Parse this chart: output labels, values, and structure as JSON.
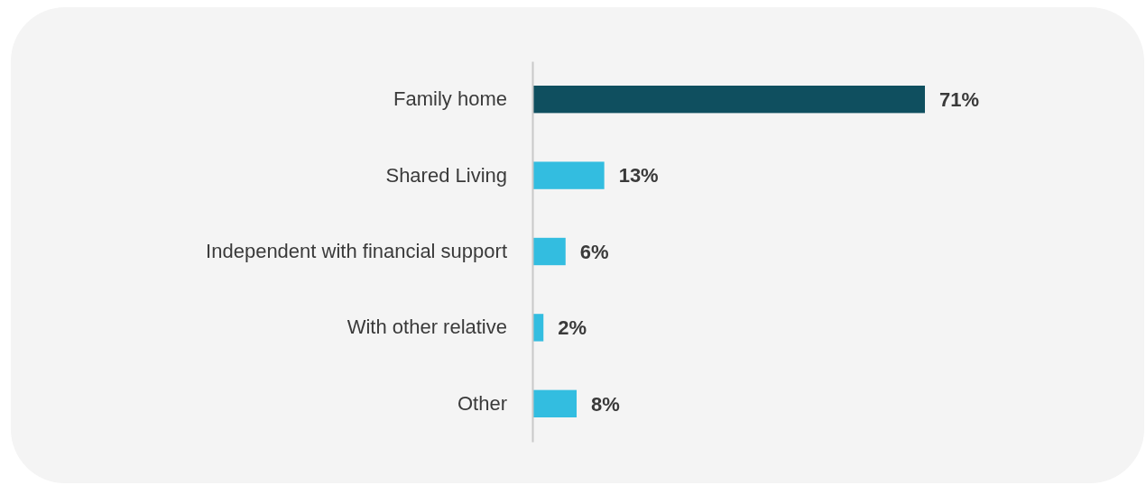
{
  "chart_data": {
    "type": "bar",
    "orientation": "horizontal",
    "categories": [
      "Family home",
      "Shared Living",
      "Independent with financial support",
      "With other relative",
      "Other"
    ],
    "values": [
      71,
      13,
      6,
      2,
      8
    ],
    "value_labels": [
      "71%",
      "13%",
      "6%",
      "2%",
      "8%"
    ],
    "colors": [
      "#0f4f5f",
      "#33bde0",
      "#33bde0",
      "#33bde0",
      "#33bde0"
    ],
    "tick_labels": "y"
  }
}
